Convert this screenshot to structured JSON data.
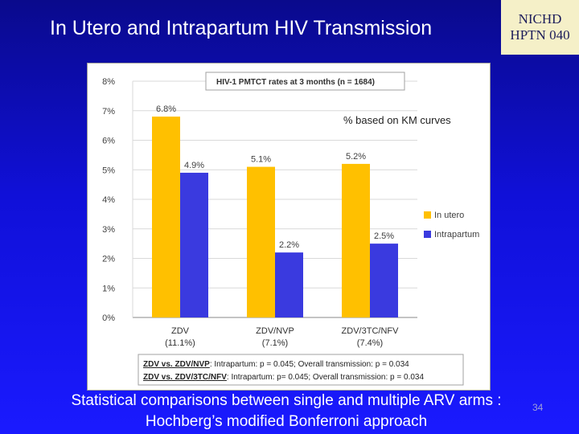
{
  "slide": {
    "title": "In Utero and Intrapartum HIV Transmission",
    "badge_line1": "NICHD",
    "badge_line2": "HPTN 040",
    "footer_line1": "Statistical comparisons between single and multiple ARV arms :",
    "footer_line2": "Hochberg’s modified Bonferroni approach",
    "slide_number": "34"
  },
  "chart_data": {
    "type": "bar",
    "title": "HIV-1 PMTCT rates at 3 months (n = 1684)",
    "note": "% based on KM curves",
    "categories": [
      "ZDV",
      "ZDV/NVP",
      "ZDV/3TC/NFV"
    ],
    "category_sublabels": [
      "(11.1%)",
      "(7.1%)",
      "(7.4%)"
    ],
    "series": [
      {
        "name": "In utero",
        "values": [
          6.8,
          5.1,
          5.2
        ],
        "labels": [
          "6.8%",
          "5.1%",
          "5.2%"
        ],
        "color": "#ffc000"
      },
      {
        "name": "Intrapartum",
        "values": [
          4.9,
          2.2,
          2.5
        ],
        "labels": [
          "4.9%",
          "2.2%",
          "2.5%"
        ],
        "color": "#3a3adf"
      }
    ],
    "ylim": [
      0,
      8
    ],
    "yticks": [
      0,
      1,
      2,
      3,
      4,
      5,
      6,
      7,
      8
    ],
    "yticklabels": [
      "0%",
      "1%",
      "2%",
      "3%",
      "4%",
      "5%",
      "6%",
      "7%",
      "8%"
    ],
    "xlabel": "",
    "ylabel": "",
    "stats": [
      {
        "comparison": "ZDV vs. ZDV/NVP",
        "detail": ": Intrapartum: p = 0.045; Overall transmission: p = 0.034"
      },
      {
        "comparison": "ZDV vs. ZDV/3TC/NFV",
        "detail": ": Intrapartum: p= 0.045; Overall transmission: p = 0.034"
      }
    ]
  }
}
